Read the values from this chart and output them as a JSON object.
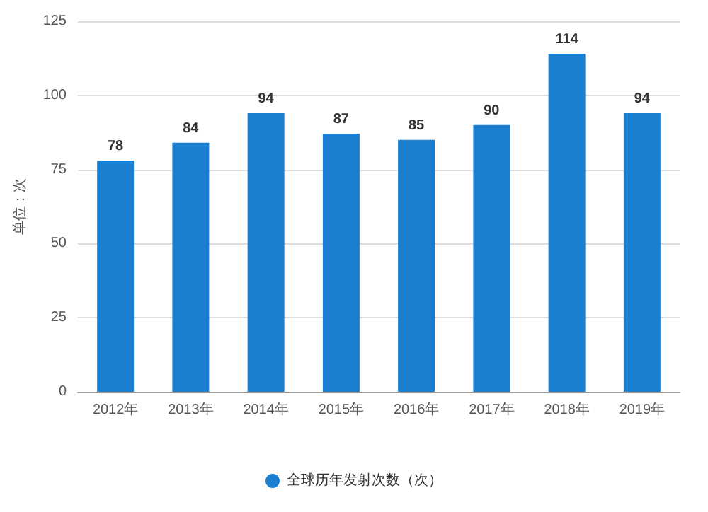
{
  "chart_data": {
    "type": "bar",
    "ylabel": "单位：次",
    "categories": [
      "2012年",
      "2013年",
      "2014年",
      "2015年",
      "2016年",
      "2017年",
      "2018年",
      "2019年"
    ],
    "series": [
      {
        "name": "全球历年发射次数（次）",
        "color": "#1b7fd1",
        "values": [
          78,
          84,
          94,
          87,
          85,
          90,
          114,
          94
        ]
      }
    ],
    "ylim": [
      0,
      125
    ],
    "yticks": [
      0,
      25,
      50,
      75,
      100,
      125
    ],
    "grid": "y",
    "legend": "bottom",
    "data_labels": true
  }
}
